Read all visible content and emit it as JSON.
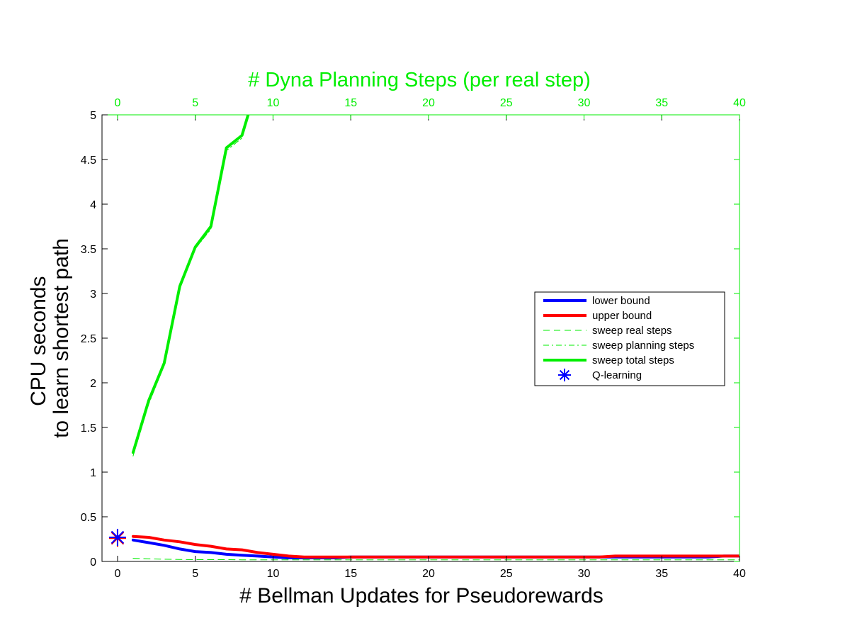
{
  "chart_data": {
    "type": "line",
    "xlabel": "# Bellman Updates for Pseudorewards",
    "x2label": "# Dyna Planning Steps (per real step)",
    "ylabel_lines": [
      "CPU seconds",
      "to learn shortest path"
    ],
    "xlim": [
      -1,
      40
    ],
    "x2lim": [
      -1,
      40
    ],
    "ylim": [
      0,
      5
    ],
    "xticks": [
      0,
      5,
      10,
      15,
      20,
      25,
      30,
      35,
      40
    ],
    "x2ticks": [
      0,
      5,
      10,
      15,
      20,
      25,
      30,
      35,
      40
    ],
    "yticks": [
      0,
      0.5,
      1,
      1.5,
      2,
      2.5,
      3,
      3.5,
      4,
      4.5,
      5
    ],
    "yticklabels": [
      "0",
      "0.5",
      "1",
      "1.5",
      "2",
      "2.5",
      "3",
      "3.5",
      "4",
      "4.5",
      "5"
    ],
    "grid": false,
    "legend_position": "right",
    "series": [
      {
        "name": "lower bound",
        "color": "#0000ff",
        "style": "solid-thick",
        "axis": "bottom",
        "x": [
          1,
          2,
          3,
          4,
          5,
          6,
          7,
          8,
          9,
          10,
          11,
          12,
          13,
          14,
          15,
          16,
          17,
          18,
          19,
          20,
          21,
          22,
          23,
          24,
          25,
          26,
          27,
          28,
          29,
          30,
          31,
          32,
          33,
          34,
          35,
          36,
          37,
          38,
          39,
          40
        ],
        "y": [
          0.24,
          0.21,
          0.18,
          0.14,
          0.11,
          0.1,
          0.08,
          0.07,
          0.06,
          0.05,
          0.04,
          0.04,
          0.04,
          0.04,
          0.05,
          0.05,
          0.05,
          0.05,
          0.05,
          0.05,
          0.05,
          0.05,
          0.05,
          0.05,
          0.05,
          0.05,
          0.05,
          0.05,
          0.05,
          0.05,
          0.05,
          0.05,
          0.05,
          0.05,
          0.05,
          0.05,
          0.05,
          0.05,
          0.06,
          0.06
        ]
      },
      {
        "name": "upper bound",
        "color": "#ff0000",
        "style": "solid-thick",
        "axis": "bottom",
        "x": [
          1,
          2,
          3,
          4,
          5,
          6,
          7,
          8,
          9,
          10,
          11,
          12,
          13,
          14,
          15,
          16,
          17,
          18,
          19,
          20,
          21,
          22,
          23,
          24,
          25,
          26,
          27,
          28,
          29,
          30,
          31,
          32,
          33,
          34,
          35,
          36,
          37,
          38,
          39,
          40
        ],
        "y": [
          0.28,
          0.27,
          0.24,
          0.22,
          0.19,
          0.17,
          0.14,
          0.13,
          0.1,
          0.08,
          0.06,
          0.05,
          0.05,
          0.05,
          0.05,
          0.05,
          0.05,
          0.05,
          0.05,
          0.05,
          0.05,
          0.05,
          0.05,
          0.05,
          0.05,
          0.05,
          0.05,
          0.05,
          0.05,
          0.05,
          0.05,
          0.06,
          0.06,
          0.06,
          0.06,
          0.06,
          0.06,
          0.06,
          0.06,
          0.06
        ]
      },
      {
        "name": "sweep real steps",
        "color": "#00ee00",
        "style": "dashed-thin",
        "axis": "top",
        "x": [
          1,
          2,
          3,
          4,
          5,
          6,
          7,
          8,
          9,
          10,
          11,
          12,
          13,
          14,
          15,
          16,
          17,
          18,
          19,
          20,
          21,
          22,
          23,
          24,
          25,
          26,
          27,
          28,
          29,
          30,
          31,
          32,
          33,
          34,
          35,
          36,
          37,
          38,
          39,
          40
        ],
        "y": [
          0.035,
          0.03,
          0.025,
          0.022,
          0.02,
          0.02,
          0.02,
          0.018,
          0.018,
          0.018,
          0.018,
          0.018,
          0.018,
          0.018,
          0.018,
          0.018,
          0.018,
          0.018,
          0.018,
          0.018,
          0.018,
          0.018,
          0.018,
          0.018,
          0.018,
          0.018,
          0.018,
          0.018,
          0.018,
          0.018,
          0.018,
          0.018,
          0.018,
          0.018,
          0.018,
          0.018,
          0.018,
          0.018,
          0.018,
          0.018
        ]
      },
      {
        "name": "sweep planning steps",
        "color": "#00ee00",
        "style": "dashdot-thin",
        "axis": "top",
        "x": [
          1,
          2,
          3,
          4,
          5,
          6,
          7,
          8,
          8.4
        ],
        "y": [
          1.18,
          1.76,
          2.2,
          3.05,
          3.5,
          3.72,
          4.6,
          4.74,
          5.0
        ]
      },
      {
        "name": "sweep total steps",
        "color": "#00ee00",
        "style": "solid-thick",
        "axis": "top",
        "x": [
          1,
          2,
          3,
          4,
          5,
          6,
          7,
          8,
          8.4
        ],
        "y": [
          1.22,
          1.8,
          2.22,
          3.08,
          3.52,
          3.75,
          4.63,
          4.77,
          5.0
        ]
      },
      {
        "name": "Q-learning",
        "color": "#0000ff",
        "marker": "asterisk",
        "axis": "bottom",
        "x": [
          0
        ],
        "y": [
          0.27
        ]
      }
    ]
  }
}
